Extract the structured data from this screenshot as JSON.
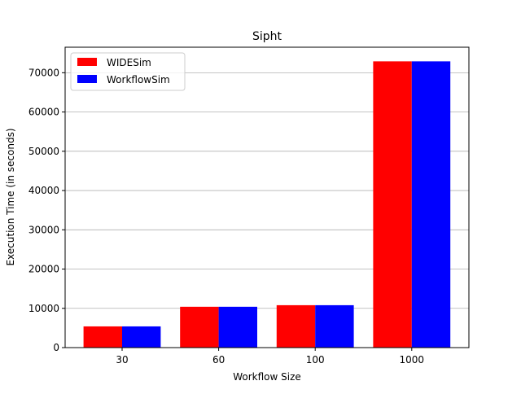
{
  "chart_data": {
    "type": "bar",
    "title": "Sipht",
    "xlabel": "Workflow Size",
    "ylabel": "Execution Time (in seconds)",
    "categories": [
      "30",
      "60",
      "100",
      "1000"
    ],
    "series": [
      {
        "name": "WIDESim",
        "color": "#ff0000",
        "values": [
          5400,
          10400,
          10800,
          72900
        ]
      },
      {
        "name": "WorkflowSim",
        "color": "#0000ff",
        "values": [
          5400,
          10400,
          10800,
          72900
        ]
      }
    ],
    "ylim": [
      0,
      76500
    ],
    "yticks": [
      0,
      10000,
      20000,
      30000,
      40000,
      50000,
      60000,
      70000
    ],
    "grid": "y-major",
    "legend_position": "top-left"
  }
}
